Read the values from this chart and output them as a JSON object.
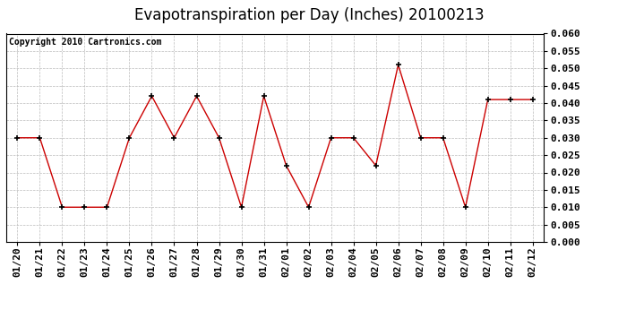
{
  "title": "Evapotranspiration per Day (Inches) 20100213",
  "copyright_text": "Copyright 2010 Cartronics.com",
  "labels": [
    "01/20",
    "01/21",
    "01/22",
    "01/23",
    "01/24",
    "01/25",
    "01/26",
    "01/27",
    "01/28",
    "01/29",
    "01/30",
    "01/31",
    "02/01",
    "02/02",
    "02/03",
    "02/04",
    "02/05",
    "02/06",
    "02/07",
    "02/08",
    "02/09",
    "02/10",
    "02/11",
    "02/12"
  ],
  "values": [
    0.03,
    0.03,
    0.01,
    0.01,
    0.01,
    0.03,
    0.042,
    0.03,
    0.042,
    0.03,
    0.01,
    0.042,
    0.022,
    0.01,
    0.03,
    0.03,
    0.022,
    0.051,
    0.03,
    0.03,
    0.01,
    0.041,
    0.041,
    0.041
  ],
  "line_color": "#cc0000",
  "marker_color": "#000000",
  "marker_size": 5,
  "ylim": [
    0.0,
    0.06
  ],
  "yticks": [
    0.0,
    0.005,
    0.01,
    0.015,
    0.02,
    0.025,
    0.03,
    0.035,
    0.04,
    0.045,
    0.05,
    0.055,
    0.06
  ],
  "grid_color": "#bbbbbb",
  "background_color": "#ffffff",
  "title_fontsize": 12,
  "copyright_fontsize": 7,
  "tick_fontsize": 8
}
